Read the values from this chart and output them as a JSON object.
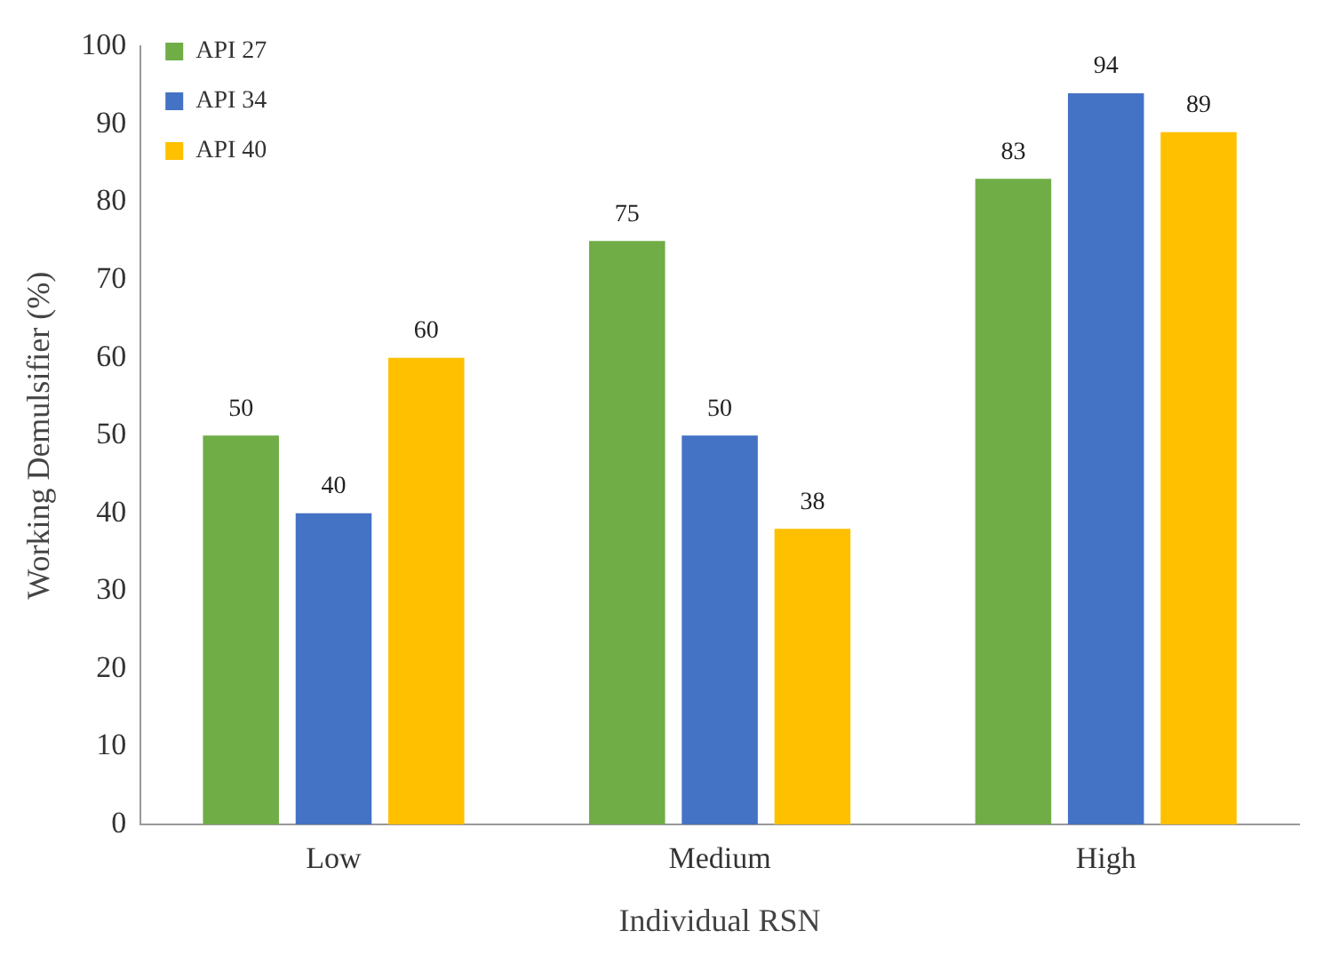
{
  "chart_data": {
    "type": "bar",
    "xlabel": "Individual RSN",
    "ylabel": "Working Demulsifier (%)",
    "categories": [
      "Low",
      "Medium",
      "High"
    ],
    "series": [
      {
        "name": "API 27",
        "color": "#70ad47",
        "values": [
          50,
          75,
          83
        ]
      },
      {
        "name": "API 34",
        "color": "#4472c4",
        "values": [
          40,
          50,
          94
        ]
      },
      {
        "name": "API 40",
        "color": "#ffc000",
        "values": [
          60,
          38,
          89
        ]
      }
    ],
    "ylim": [
      0,
      100
    ],
    "yticks": [
      0,
      10,
      20,
      30,
      40,
      50,
      60,
      70,
      80,
      90,
      100
    ],
    "grid": false,
    "legend": "top left",
    "data_labels": true
  }
}
